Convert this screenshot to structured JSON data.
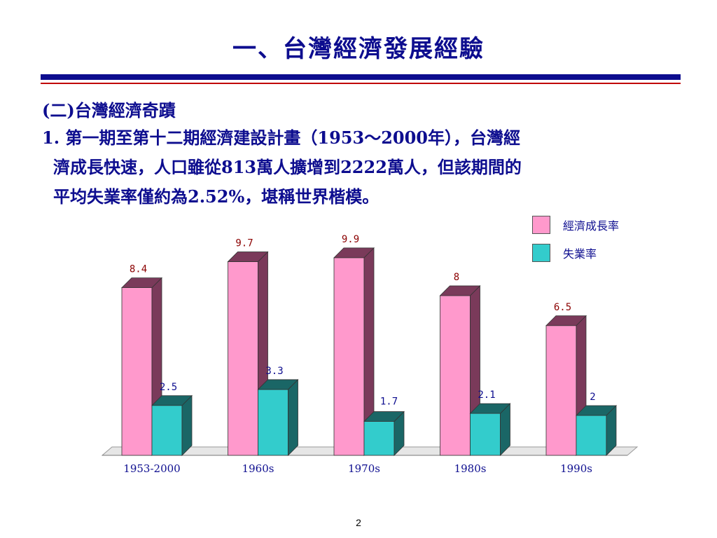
{
  "slide": {
    "title": "一、台灣經濟發展經驗",
    "subheading": "(二)台灣經濟奇蹟",
    "paragraph_lines": [
      "1. 第一期至第十二期經濟建設計畫（1953～2000年），台灣經",
      "濟成長快速，人口雖從813萬人擴增到2222萬人，但該期間的",
      "平均失業率僅約為2.52%，堪稱世界楷模。"
    ],
    "page_number": "2"
  },
  "colors": {
    "title_text": "#0d0d8f",
    "rule_blue": "#0d0d8f",
    "rule_red": "#c00000",
    "growth_front": "#ff99cc",
    "growth_side": "#7a3a5a",
    "growth_top": "#7a3a5a",
    "unemp_front": "#33cccc",
    "unemp_side": "#1a6666",
    "unemp_top": "#1a6666",
    "growth_label": "#8b0000",
    "unemp_label": "#0d0d8f"
  },
  "chart_data": {
    "type": "bar",
    "categories": [
      "1953-2000",
      "1960s",
      "1970s",
      "1980s",
      "1990s"
    ],
    "series": [
      {
        "name": "經濟成長率",
        "values": [
          8.4,
          9.7,
          9.9,
          8,
          6.5
        ]
      },
      {
        "name": "失業率",
        "values": [
          2.5,
          3.3,
          1.7,
          2.1,
          2
        ]
      }
    ],
    "value_labels": [
      [
        "8.4",
        "9.7",
        "9.9",
        "8",
        "6.5"
      ],
      [
        "2.5",
        "3.3",
        "1.7",
        "2.1",
        "2"
      ]
    ],
    "ylim": [
      0,
      10
    ],
    "title": "",
    "xlabel": "",
    "ylabel": "",
    "legend_position": "top-right",
    "grid": false,
    "style": "3d-bar"
  }
}
